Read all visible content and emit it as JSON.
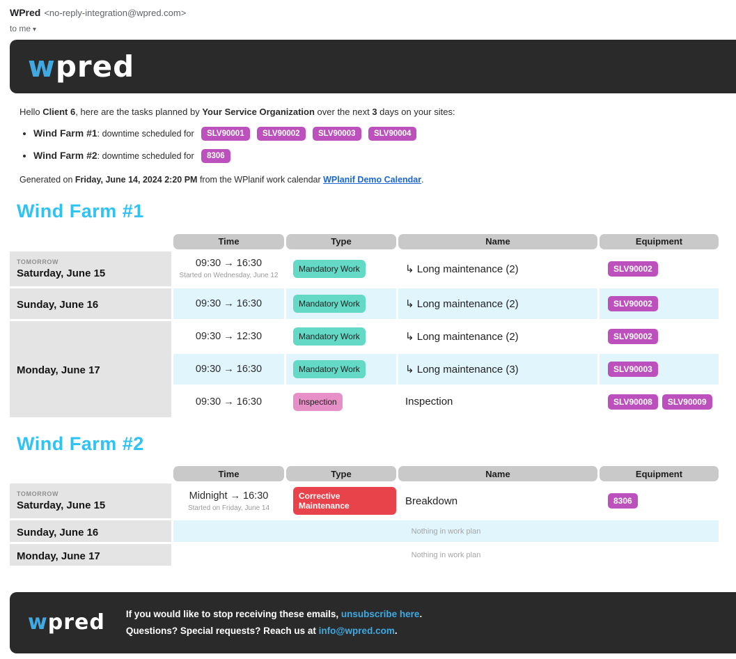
{
  "email_header": {
    "sender_name": "WPred",
    "sender_address": "<no-reply-integration@wpred.com>",
    "recipient_line": "to me",
    "caret_icon": "▾"
  },
  "brand": {
    "logo_w": "w",
    "logo_rest": "pred"
  },
  "intro": {
    "greeting_prefix": "Hello ",
    "client": "Client 6",
    "after_client": ", here are the tasks planned by ",
    "organization": "Your Service Organization",
    "after_org": " over the next ",
    "days": "3",
    "suffix": " days on your sites:"
  },
  "sites_overview": [
    {
      "name": "Wind Farm #1",
      "label": ": downtime scheduled for",
      "equipment": [
        "SLV90001",
        "SLV90002",
        "SLV90003",
        "SLV90004"
      ]
    },
    {
      "name": "Wind Farm #2",
      "label": ": downtime scheduled for",
      "equipment": [
        "8306"
      ]
    }
  ],
  "generated": {
    "prefix": "Generated on ",
    "datetime": "Friday, June 14, 2024 2:20 PM",
    "middle": " from the WPlanif work calendar ",
    "link": "WPlanif Demo Calendar",
    "suffix": "."
  },
  "table_headers": {
    "time": "Time",
    "type": "Type",
    "name": "Name",
    "equipment": "Equipment"
  },
  "farms": [
    {
      "title": "Wind Farm #1",
      "days": [
        {
          "badge": "TOMORROW",
          "date": "Saturday, June 15"
        },
        {
          "date": "Sunday, June 16"
        },
        {
          "date": "Monday, June 17"
        }
      ],
      "rows": [
        {
          "time": "09:30 → 16:30",
          "time_note": "Started on Wednesday, June 12",
          "type": "Mandatory Work",
          "name": "↳ Long maintenance (2)",
          "equipment": [
            "SLV90002"
          ]
        },
        {
          "time": "09:30 → 16:30",
          "type": "Mandatory Work",
          "name": "↳ Long maintenance (2)",
          "equipment": [
            "SLV90002"
          ]
        },
        {
          "time": "09:30 → 12:30",
          "type": "Mandatory Work",
          "name": "↳ Long maintenance (2)",
          "equipment": [
            "SLV90002"
          ]
        },
        {
          "time": "09:30 → 16:30",
          "type": "Mandatory Work",
          "name": "↳ Long maintenance (3)",
          "equipment": [
            "SLV90003"
          ]
        },
        {
          "time": "09:30 → 16:30",
          "type": "Inspection",
          "name": "Inspection",
          "equipment": [
            "SLV90008",
            "SLV90009"
          ]
        }
      ]
    },
    {
      "title": "Wind Farm #2",
      "days": [
        {
          "badge": "TOMORROW",
          "date": "Saturday, June 15"
        },
        {
          "date": "Sunday, June 16"
        },
        {
          "date": "Monday, June 17"
        }
      ],
      "rows": [
        {
          "time": "Midnight → 16:30",
          "time_note": "Started on Friday, June 14",
          "type": "Corrective Maintenance",
          "name": "Breakdown",
          "equipment": [
            "8306"
          ]
        }
      ],
      "empty_text": "Nothing in work plan"
    }
  ],
  "footer": {
    "line1_prefix": "If you would like to stop receiving these emails, ",
    "line1_link": "unsubscribe here",
    "line1_suffix": ".",
    "line2_prefix": "Questions? Special requests? Reach us at ",
    "line2_link": "info@wpred.com",
    "line2_suffix": "."
  },
  "colors": {
    "brand_dark": "#2a2a2a",
    "brand_blue": "#41a9e1",
    "heading_cyan": "#2fc2f5",
    "equipment_badge": "#bc51be",
    "mandatory_badge": "#63d9c6",
    "inspection_badge": "#e78fc7",
    "corrective_badge": "#e8434b",
    "row_highlight": "#e1f5fd",
    "table_header_bg": "#c9c9c9",
    "date_cell_bg": "#e4e4e4",
    "link_blue": "#1a67d2"
  }
}
